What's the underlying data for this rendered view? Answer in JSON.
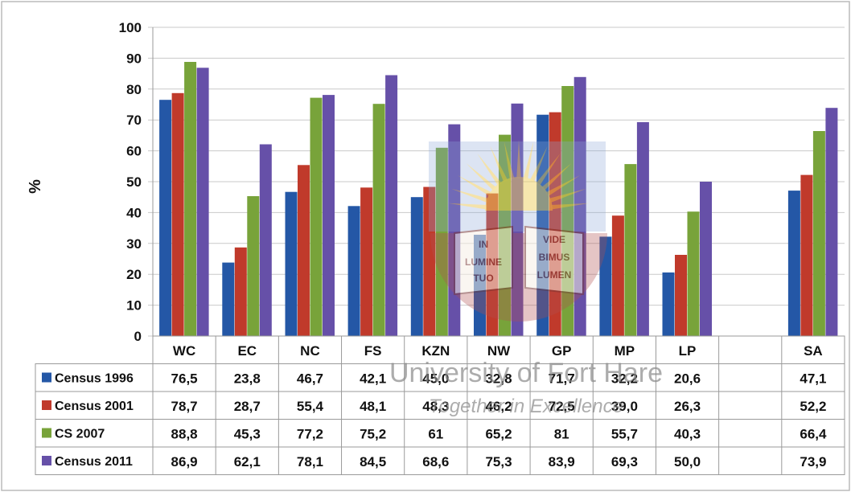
{
  "chart_data": {
    "type": "bar",
    "ylabel": "%",
    "ylim": [
      0,
      100
    ],
    "yticks": [
      0,
      10,
      20,
      30,
      40,
      50,
      60,
      70,
      80,
      90,
      100
    ],
    "grid": true,
    "legend": "data-table-below",
    "categories": [
      "WC",
      "EC",
      "NC",
      "FS",
      "KZN",
      "NW",
      "GP",
      "MP",
      "LP",
      "",
      "SA"
    ],
    "series": [
      {
        "name": "Census 1996",
        "color": "#2457a6",
        "values": [
          76.5,
          23.8,
          46.7,
          42.1,
          45.0,
          32.8,
          71.7,
          32.2,
          20.6,
          null,
          47.1
        ],
        "labels": [
          "76,5",
          "23,8",
          "46,7",
          "42,1",
          "45,0",
          "32,8",
          "71,7",
          "32,2",
          "20,6",
          "",
          "47,1"
        ]
      },
      {
        "name": "Census 2001",
        "color": "#c03a2b",
        "values": [
          78.7,
          28.7,
          55.4,
          48.1,
          48.3,
          46.2,
          72.5,
          39.0,
          26.3,
          null,
          52.2
        ],
        "labels": [
          "78,7",
          "28,7",
          "55,4",
          "48,1",
          "48,3",
          "46,2",
          "72,5",
          "39,0",
          "26,3",
          "",
          "52,2"
        ]
      },
      {
        "name": "CS 2007",
        "color": "#78a33a",
        "values": [
          88.8,
          45.3,
          77.2,
          75.2,
          61,
          65.2,
          81,
          55.7,
          40.3,
          null,
          66.4
        ],
        "labels": [
          "88,8",
          "45,3",
          "77,2",
          "75,2",
          "61",
          "65,2",
          "81",
          "55,7",
          "40,3",
          "",
          "66,4"
        ]
      },
      {
        "name": "Census 2011",
        "color": "#6650a8",
        "values": [
          86.9,
          62.1,
          78.1,
          84.5,
          68.6,
          75.3,
          83.9,
          69.3,
          50.0,
          null,
          73.9
        ],
        "labels": [
          "86,9",
          "62,1",
          "78,1",
          "84,5",
          "68,6",
          "75,3",
          "83,9",
          "69,3",
          "50,0",
          "",
          "73,9"
        ]
      }
    ]
  },
  "watermark": {
    "logo_text": [
      "IN",
      "LUMINE",
      "TUO",
      "VIDE",
      "BIMUS",
      "LUMEN"
    ],
    "line1": "University of Fort Hare",
    "line2": "Together in Excellence"
  }
}
